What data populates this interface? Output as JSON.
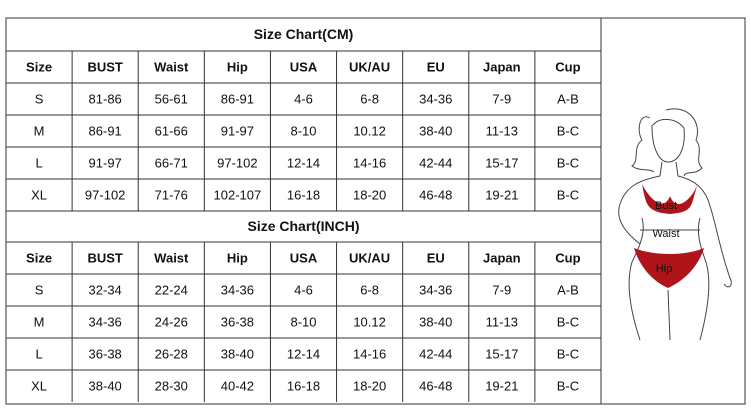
{
  "tables": [
    {
      "title": "Size Chart(CM)",
      "header": [
        "Size",
        "BUST",
        "Waist",
        "Hip",
        "USA",
        "UK/AU",
        "EU",
        "Japan",
        "Cup"
      ],
      "rows": [
        [
          "S",
          "81-86",
          "56-61",
          "86-91",
          "4-6",
          "6-8",
          "34-36",
          "7-9",
          "A-B"
        ],
        [
          "M",
          "86-91",
          "61-66",
          "91-97",
          "8-10",
          "10.12",
          "38-40",
          "11-13",
          "B-C"
        ],
        [
          "L",
          "91-97",
          "66-71",
          "97-102",
          "12-14",
          "14-16",
          "42-44",
          "15-17",
          "B-C"
        ],
        [
          "XL",
          "97-102",
          "71-76",
          "102-107",
          "16-18",
          "18-20",
          "46-48",
          "19-21",
          "B-C"
        ]
      ]
    },
    {
      "title": "Size Chart(INCH)",
      "header": [
        "Size",
        "BUST",
        "Waist",
        "Hip",
        "USA",
        "UK/AU",
        "EU",
        "Japan",
        "Cup"
      ],
      "rows": [
        [
          "S",
          "32-34",
          "22-24",
          "34-36",
          "4-6",
          "6-8",
          "34-36",
          "7-9",
          "A-B"
        ],
        [
          "M",
          "34-36",
          "24-26",
          "36-38",
          "8-10",
          "10.12",
          "38-40",
          "11-13",
          "B-C"
        ],
        [
          "L",
          "36-38",
          "26-28",
          "38-40",
          "12-14",
          "14-16",
          "42-44",
          "15-17",
          "B-C"
        ],
        [
          "XL",
          "38-40",
          "28-30",
          "40-42",
          "16-18",
          "18-20",
          "46-48",
          "19-21",
          "B-C"
        ]
      ]
    }
  ],
  "figure": {
    "labels": [
      "Bust",
      "Waist",
      "Hip"
    ]
  }
}
